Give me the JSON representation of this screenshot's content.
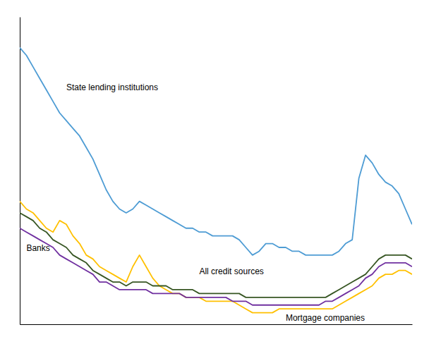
{
  "chart_data": {
    "type": "line",
    "x": [
      0,
      1,
      2,
      3,
      4,
      5,
      6,
      7,
      8,
      9,
      10,
      11,
      12,
      13,
      14,
      15,
      16,
      17,
      18,
      19,
      20,
      21,
      22,
      23,
      24,
      25,
      26,
      27,
      28,
      29,
      30,
      31,
      32,
      33,
      34,
      35,
      36,
      37,
      38,
      39,
      40,
      41,
      42,
      43,
      44,
      45,
      46,
      47,
      48,
      49,
      50,
      51,
      52,
      53,
      54,
      55,
      56,
      57,
      58,
      59
    ],
    "xlim": [
      0,
      59
    ],
    "ylim": [
      0,
      80
    ],
    "xticks": [],
    "yticks": [],
    "tick_labels": false,
    "grid": false,
    "series": [
      {
        "color": "#4E9CD4",
        "values": [
          72,
          70,
          67,
          64,
          61,
          58,
          55,
          53,
          51,
          49,
          46,
          43,
          39,
          35,
          32,
          30,
          29,
          30,
          32,
          31,
          30,
          29,
          28,
          27,
          26,
          25,
          25,
          24,
          24,
          23,
          23,
          23,
          23,
          22,
          20,
          18,
          19,
          21,
          21,
          20,
          20,
          19,
          19,
          18,
          18,
          18,
          18,
          18,
          19,
          21,
          22,
          38,
          44,
          42,
          39,
          37,
          36,
          34,
          30,
          26
        ]
      },
      {
        "color": "#FFC000",
        "values": [
          32,
          30,
          29,
          27,
          25,
          24,
          27,
          26,
          23,
          21,
          18,
          17,
          15,
          14,
          13,
          12,
          11,
          15,
          18,
          15,
          12,
          10,
          9,
          8,
          8,
          7,
          7,
          7,
          6,
          6,
          6,
          6,
          6,
          5,
          4,
          3,
          3,
          3,
          3,
          4,
          4,
          4,
          4,
          4,
          4,
          4,
          4,
          4,
          5,
          6,
          7,
          8,
          9,
          10,
          12,
          13,
          13,
          14,
          14,
          13
        ]
      },
      {
        "color": "#7030A0",
        "values": [
          25,
          24,
          23,
          22,
          21,
          20,
          18,
          17,
          16,
          15,
          14,
          13,
          11,
          11,
          10,
          9,
          9,
          9,
          9,
          9,
          8,
          8,
          8,
          8,
          8,
          7,
          7,
          7,
          7,
          7,
          7,
          7,
          6,
          6,
          6,
          5,
          5,
          5,
          5,
          5,
          5,
          5,
          5,
          5,
          5,
          5,
          6,
          6,
          7,
          8,
          9,
          10,
          12,
          13,
          15,
          16,
          16,
          16,
          16,
          15
        ]
      },
      {
        "color": "#375623",
        "values": [
          29,
          28,
          27,
          25,
          24,
          22,
          21,
          20,
          18,
          17,
          16,
          14,
          13,
          12,
          11,
          11,
          10,
          11,
          11,
          11,
          10,
          10,
          10,
          9,
          9,
          9,
          9,
          8,
          8,
          8,
          8,
          8,
          8,
          8,
          7,
          7,
          7,
          7,
          7,
          7,
          7,
          7,
          7,
          7,
          7,
          7,
          7,
          8,
          9,
          10,
          11,
          12,
          13,
          15,
          17,
          18,
          18,
          18,
          18,
          17
        ]
      }
    ],
    "annotations": [
      {
        "text": "State lending  institutions",
        "x": 7,
        "y": 61
      },
      {
        "text": "Banks",
        "x": 1,
        "y": 19
      },
      {
        "text": "All credit sources",
        "x": 27,
        "y": 13
      },
      {
        "text": "Mortgage companies",
        "x": 40,
        "y": 1
      }
    ]
  }
}
